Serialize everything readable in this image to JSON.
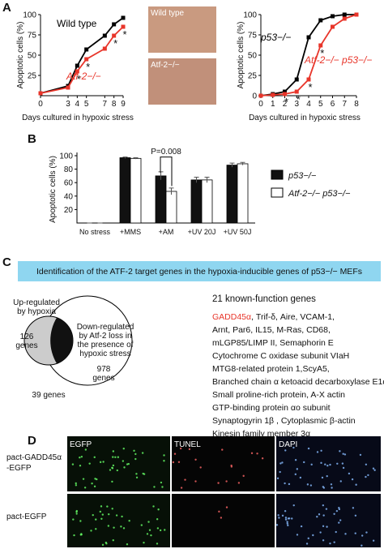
{
  "panel_labels": [
    "A",
    "B",
    "C",
    "D"
  ],
  "chart_data": [
    {
      "type": "line",
      "xlabel": "Days cultured in hypoxic stress",
      "ylabel": "Apoptotic cells (%)",
      "x": [
        0,
        3,
        4,
        5,
        7,
        8,
        9
      ],
      "xlim": [
        0,
        9
      ],
      "xticks": [
        0,
        3,
        4,
        5,
        7,
        8,
        9
      ],
      "ylim": [
        0,
        100
      ],
      "yticks": [
        25,
        50,
        75,
        100
      ],
      "significance_marker": "*",
      "series": [
        {
          "name": "Wild type",
          "color": "#000000",
          "values": [
            3,
            12,
            37,
            57,
            74,
            88,
            96
          ]
        },
        {
          "name": "Atf-2−/−",
          "color": "#e8352a",
          "values": [
            3,
            10,
            30,
            45,
            58,
            74,
            85
          ]
        }
      ]
    },
    {
      "type": "line",
      "xlabel": "Days cultured in hypoxic stress",
      "ylabel": "Apoptotic cells (%)",
      "x": [
        0,
        1,
        2,
        3,
        4,
        5,
        6,
        7,
        8
      ],
      "xlim": [
        0,
        8
      ],
      "xticks": [
        0,
        1,
        2,
        3,
        4,
        5,
        6,
        7,
        8
      ],
      "ylim": [
        0,
        100
      ],
      "yticks": [
        0,
        25,
        50,
        75,
        100
      ],
      "significance_marker": "*",
      "series": [
        {
          "name": "p53−/−",
          "color": "#000000",
          "values": [
            0,
            2,
            5,
            20,
            72,
            93,
            98,
            100,
            100
          ]
        },
        {
          "name": "Atf-2−/− p53−/−",
          "color": "#e8352a",
          "values": [
            0,
            1,
            2,
            5,
            20,
            62,
            85,
            95,
            100
          ]
        }
      ]
    },
    {
      "type": "bar",
      "ylabel": "Apoptotic cells (%)",
      "annotation": "P=0.008",
      "categories": [
        "No stress",
        "+MMS",
        "+AM",
        "+UV 20J",
        "+UV 50J"
      ],
      "ylim": [
        0,
        100
      ],
      "yticks": [
        20,
        40,
        60,
        80,
        100
      ],
      "series": [
        {
          "name": "p53−/−",
          "color": "#111111",
          "values": [
            0,
            97,
            70,
            64,
            86
          ],
          "errors": [
            0,
            1,
            6,
            4,
            3
          ]
        },
        {
          "name": "Atf-2−/− p53−/−",
          "color": "#ffffff",
          "values": [
            0,
            96,
            47,
            64,
            88
          ],
          "errors": [
            0,
            1,
            5,
            4,
            2
          ]
        }
      ]
    }
  ],
  "photos": {
    "top": "Wild type",
    "bottom": "Atf-2−/−"
  },
  "panel_c": {
    "banner": "Identification of the ATF-2 target genes in the hypoxia-inducible genes of p53−/− MEFs",
    "venn": {
      "left_label": [
        "Up-regulated",
        "by hypoxia"
      ],
      "left_count": [
        "126",
        "genes"
      ],
      "right_label": [
        "Down-regulated",
        "by Atf-2 loss in",
        "the presence of",
        "hypoxic stress"
      ],
      "right_count": [
        "978",
        "genes"
      ],
      "overlap": "39 genes"
    },
    "gene_heading": "21 known-function genes",
    "gene_highlight": "GADD45α",
    "gene_lines": [
      ", Trif-δ, Aire, VCAM-1,",
      "Arnt, Par6, IL15, M-Ras, CD68,",
      "mLGP85/LIMP II, Semaphorin E",
      "Cytochrome C oxidase subunit VIaH",
      "MTG8-related protein 1,ScyA5,",
      "Branched chain α ketoacid decarboxylase E1α",
      "Small proline-rich protein, A-X actin",
      "GTP-binding protein αo subunit",
      "Synaptogyrin 1β , Cytoplasmic β-actin",
      "Kinesin family member 3α"
    ]
  },
  "panel_d": {
    "columns": [
      "EGFP",
      "TUNEL",
      "DAPI"
    ],
    "rows": [
      [
        "pact-GADD45α",
        "-EGFP"
      ],
      [
        "pact-EGFP"
      ]
    ]
  }
}
